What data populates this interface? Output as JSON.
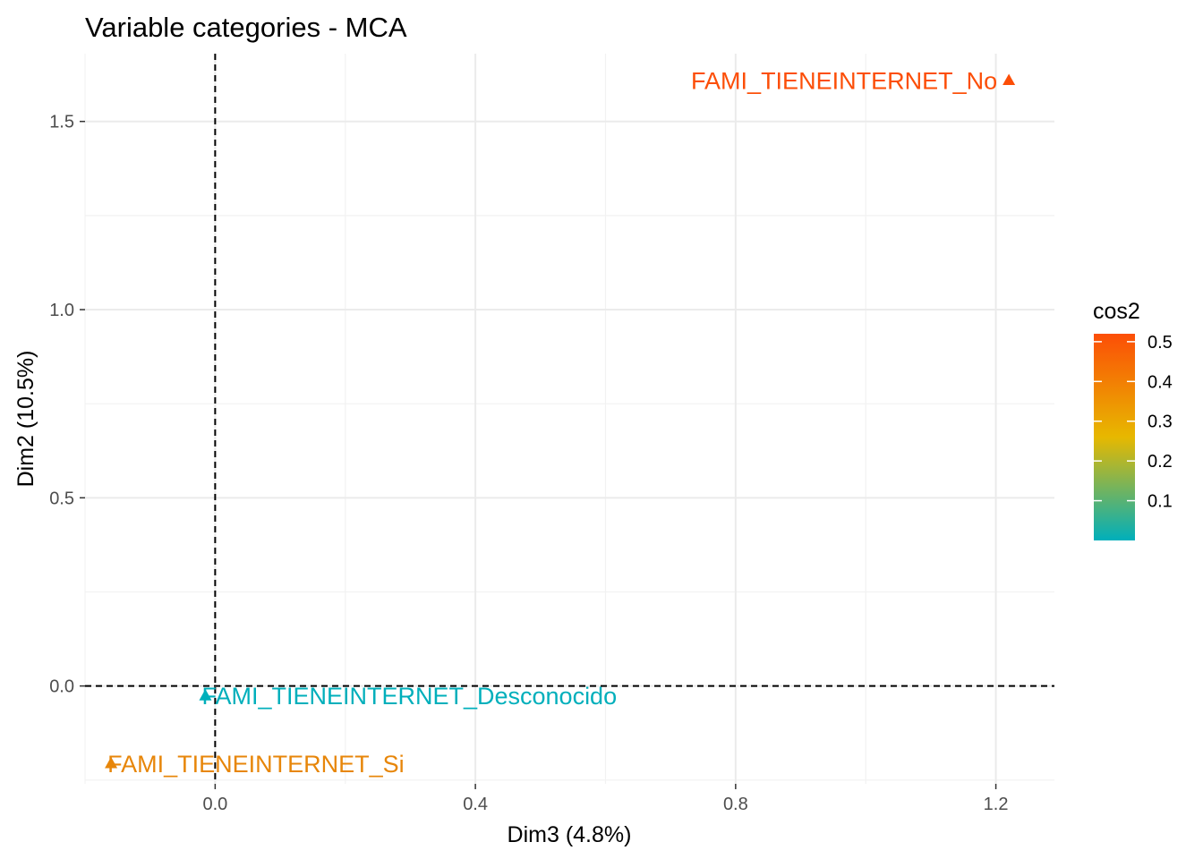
{
  "chart_data": {
    "type": "scatter",
    "title": "Variable categories - MCA",
    "xlabel": "Dim3 (4.8%)",
    "ylabel": "Dim2 (10.5%)",
    "xlim": [
      -0.2,
      1.29
    ],
    "ylim": [
      -0.26,
      1.68
    ],
    "x_ticks": [
      0.0,
      0.4,
      0.8,
      1.2
    ],
    "x_tick_labels": [
      "0.0",
      "0.4",
      "0.8",
      "1.2"
    ],
    "y_ticks": [
      0.0,
      0.5,
      1.0,
      1.5
    ],
    "y_tick_labels": [
      "0.0",
      "0.5",
      "1.0",
      "1.5"
    ],
    "x_minor_ticks": [
      -0.2,
      0.2,
      0.6,
      1.0
    ],
    "y_minor_ticks": [
      -0.25,
      0.25,
      0.75,
      1.25
    ],
    "grid": true,
    "reference_lines": {
      "x": 0,
      "y": 0,
      "style": "dashed"
    },
    "marker": "triangle",
    "points": [
      {
        "label": "FAMI_TIENEINTERNET_No",
        "x": 1.22,
        "y": 1.61,
        "cos2": 0.52,
        "color": "#FC4E07"
      },
      {
        "label": "FAMI_TIENEINTERNET_Desconocido",
        "x": -0.015,
        "y": -0.025,
        "cos2": 0.0,
        "color": "#00AFBB"
      },
      {
        "label": "FAMI_TIENEINTERNET_Si",
        "x": -0.16,
        "y": -0.205,
        "cos2": 0.4,
        "color": "#E7860A"
      }
    ],
    "legend": {
      "title": "cos2",
      "placement": "right",
      "ticks": [
        0.1,
        0.2,
        0.3,
        0.4,
        0.5
      ],
      "tick_labels": [
        "0.1",
        "0.2",
        "0.3",
        "0.4",
        "0.5"
      ],
      "range": [
        0.0,
        0.52
      ],
      "gradient": [
        "#00AFBB",
        "#E7B800",
        "#FC4E07"
      ]
    }
  }
}
